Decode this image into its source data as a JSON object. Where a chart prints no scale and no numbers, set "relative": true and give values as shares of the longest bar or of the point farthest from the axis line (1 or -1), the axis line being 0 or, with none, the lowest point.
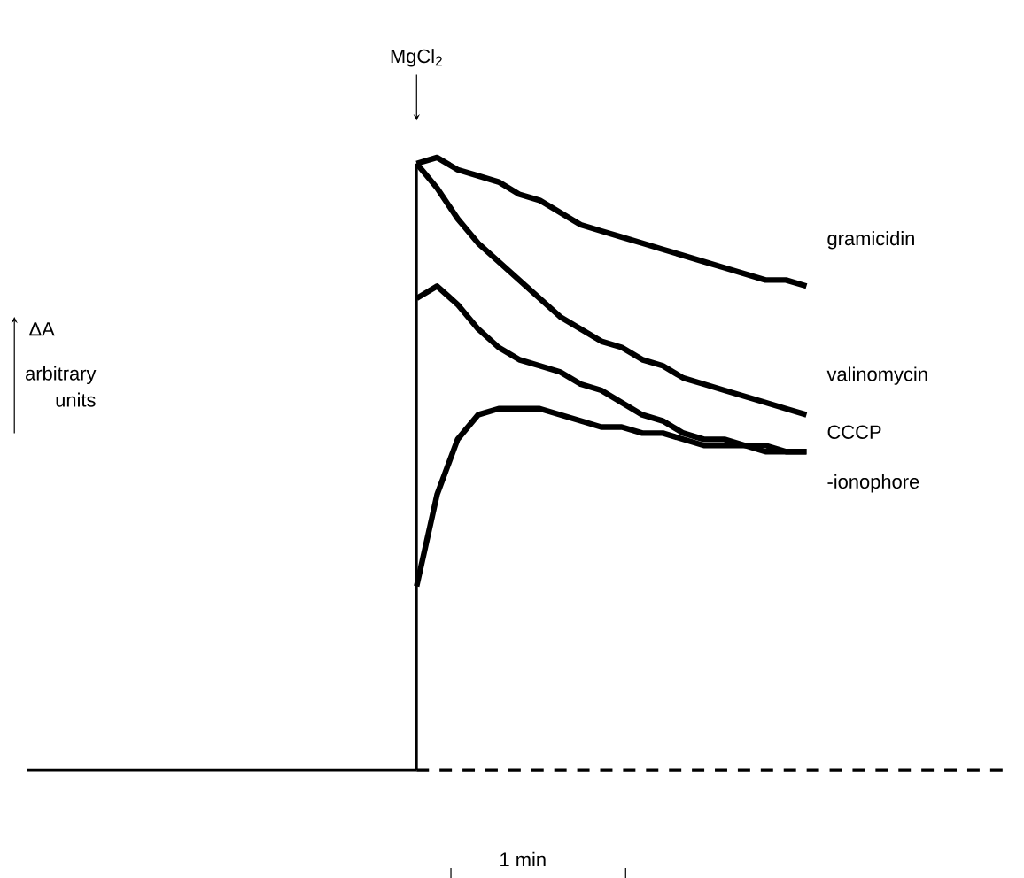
{
  "chart_data": {
    "type": "line",
    "relative": true,
    "marker": "none",
    "ylabel": "ΔA",
    "annotations": [
      "MgCl$_{2}$",
      "arbitrary units",
      "1 min"
    ],
    "categories": [
      null,
      null,
      null,
      null,
      null,
      null,
      null,
      null,
      null,
      null,
      null,
      null,
      null,
      null,
      null,
      null,
      null,
      null,
      null,
      null,
      null,
      null,
      null,
      null,
      null,
      null,
      null,
      null,
      null,
      null,
      null,
      null,
      null,
      null,
      null,
      null,
      null,
      null,
      null,
      null,
      null,
      null,
      null,
      null,
      null,
      null,
      null,
      null,
      null
    ],
    "series": [
      {
        "color": "#000000",
        "values": [
          0,
          0,
          0,
          0,
          0,
          0,
          0,
          0,
          0,
          0,
          0,
          0,
          0,
          0,
          0,
          0,
          0,
          0,
          0,
          0,
          null,
          null,
          null,
          null,
          null,
          null,
          null,
          null,
          null,
          null,
          null,
          null,
          null,
          null,
          null,
          null,
          null,
          null,
          null,
          null,
          null,
          null,
          null,
          null,
          null,
          null,
          null,
          null,
          null
        ]
      },
      {
        "color": "#000000",
        "line_style": "dashed",
        "values": [
          null,
          null,
          null,
          null,
          null,
          null,
          null,
          null,
          null,
          null,
          null,
          null,
          null,
          null,
          null,
          null,
          null,
          null,
          null,
          0,
          0,
          0,
          0,
          0,
          0,
          0,
          0,
          0,
          0,
          0,
          0,
          0,
          0,
          0,
          0,
          0,
          0,
          0,
          0,
          0,
          0,
          0,
          0,
          0,
          0,
          0,
          0,
          0,
          0
        ]
      },
      {
        "name": "gramicidin",
        "color": "#000000",
        "values": [
          null,
          null,
          null,
          null,
          null,
          null,
          null,
          null,
          null,
          null,
          null,
          null,
          null,
          null,
          null,
          null,
          null,
          null,
          null,
          0.99,
          1.0,
          0.98,
          0.97,
          0.96,
          0.94,
          0.93,
          0.91,
          0.89,
          0.88,
          0.87,
          0.86,
          0.85,
          0.84,
          0.83,
          0.82,
          0.81,
          0.8,
          0.8,
          0.79,
          null,
          null,
          null,
          null,
          null,
          null,
          null,
          null,
          null,
          null
        ]
      },
      {
        "name": "valinomycin",
        "color": "#000000",
        "values": [
          null,
          null,
          null,
          null,
          null,
          null,
          null,
          null,
          null,
          null,
          null,
          null,
          null,
          null,
          null,
          null,
          null,
          null,
          null,
          0.99,
          0.95,
          0.9,
          0.86,
          0.83,
          0.8,
          0.77,
          0.74,
          0.72,
          0.7,
          0.69,
          0.67,
          0.66,
          0.64,
          0.63,
          0.62,
          0.61,
          0.6,
          0.59,
          0.58,
          null,
          null,
          null,
          null,
          null,
          null,
          null,
          null,
          null,
          null
        ]
      },
      {
        "name": "CCCP",
        "color": "#000000",
        "values": [
          null,
          null,
          null,
          null,
          null,
          null,
          null,
          null,
          null,
          null,
          null,
          null,
          null,
          null,
          null,
          null,
          null,
          null,
          null,
          0.77,
          0.79,
          0.76,
          0.72,
          0.69,
          0.67,
          0.66,
          0.65,
          0.63,
          0.62,
          0.6,
          0.58,
          0.57,
          0.55,
          0.54,
          0.54,
          0.53,
          0.53,
          0.52,
          0.52,
          null,
          null,
          null,
          null,
          null,
          null,
          null,
          null,
          null,
          null
        ]
      },
      {
        "name": "-ionophore",
        "color": "#000000",
        "values": [
          null,
          null,
          null,
          null,
          null,
          null,
          null,
          null,
          null,
          null,
          null,
          null,
          null,
          null,
          null,
          null,
          null,
          null,
          null,
          0.3,
          0.45,
          0.54,
          0.58,
          0.59,
          0.59,
          0.59,
          0.58,
          0.57,
          0.56,
          0.56,
          0.55,
          0.55,
          0.54,
          0.53,
          0.53,
          0.53,
          0.52,
          0.52,
          0.52,
          null,
          null,
          null,
          null,
          null,
          null,
          null,
          null,
          null,
          null
        ]
      }
    ]
  }
}
